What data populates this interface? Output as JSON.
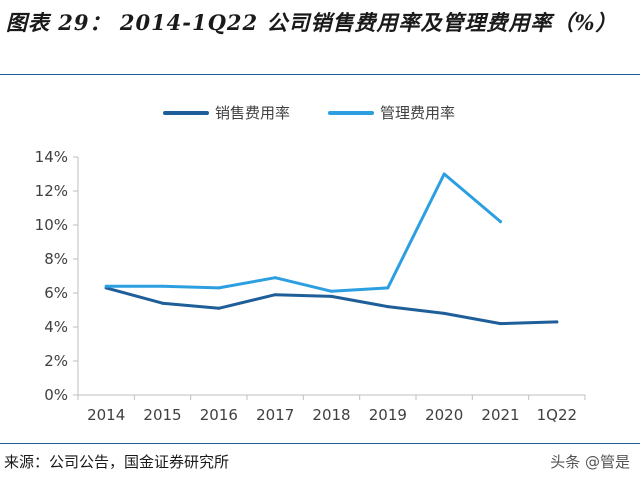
{
  "figure": {
    "title": "图表 29：  2014-1Q22 公司销售费用率及管理费用率（%）",
    "source": "来源：公司公告，国金证券研究所",
    "watermark": "头条 @管是"
  },
  "chart_data": {
    "type": "line",
    "title": "",
    "xlabel": "",
    "ylabel": "",
    "categories": [
      "2014",
      "2015",
      "2016",
      "2017",
      "2018",
      "2019",
      "2020",
      "2021",
      "1Q22"
    ],
    "ylim": [
      0,
      14
    ],
    "yticks": [
      0,
      2,
      4,
      6,
      8,
      10,
      12,
      14
    ],
    "ytick_format": "percent",
    "legend_position": "top-center",
    "grid": false,
    "series": [
      {
        "name": "销售费用率",
        "color": "#1f5f99",
        "values": [
          6.3,
          5.4,
          5.1,
          5.9,
          5.8,
          5.2,
          4.8,
          4.2,
          4.3
        ]
      },
      {
        "name": "管理费用率",
        "color": "#2c9fe0",
        "values": [
          6.4,
          6.4,
          6.3,
          6.9,
          6.1,
          6.3,
          13.0,
          10.2,
          null
        ]
      }
    ]
  }
}
